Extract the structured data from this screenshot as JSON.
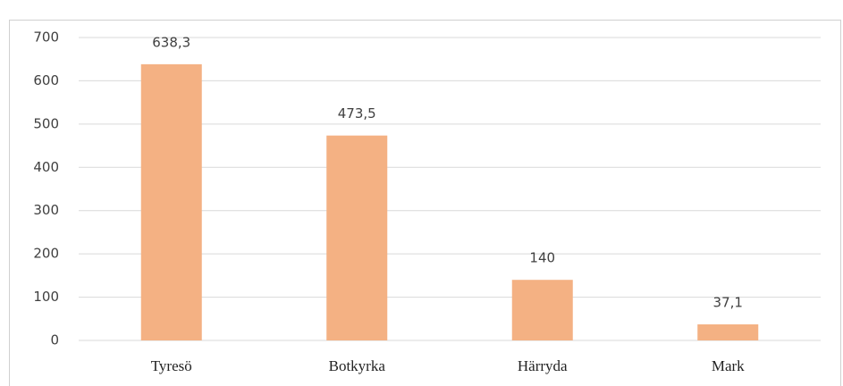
{
  "chart_data": {
    "type": "bar",
    "categories": [
      "Tyresö",
      "Botkyrka",
      "Härryda",
      "Mark"
    ],
    "values": [
      638.3,
      473.5,
      140,
      37.1
    ],
    "value_labels": [
      "638,3",
      "473,5",
      "140",
      "37,1"
    ],
    "color": "#f4b183",
    "ylim": [
      0,
      700
    ],
    "yticks": [
      0,
      100,
      200,
      300,
      400,
      500,
      600,
      700
    ],
    "grid": true
  }
}
